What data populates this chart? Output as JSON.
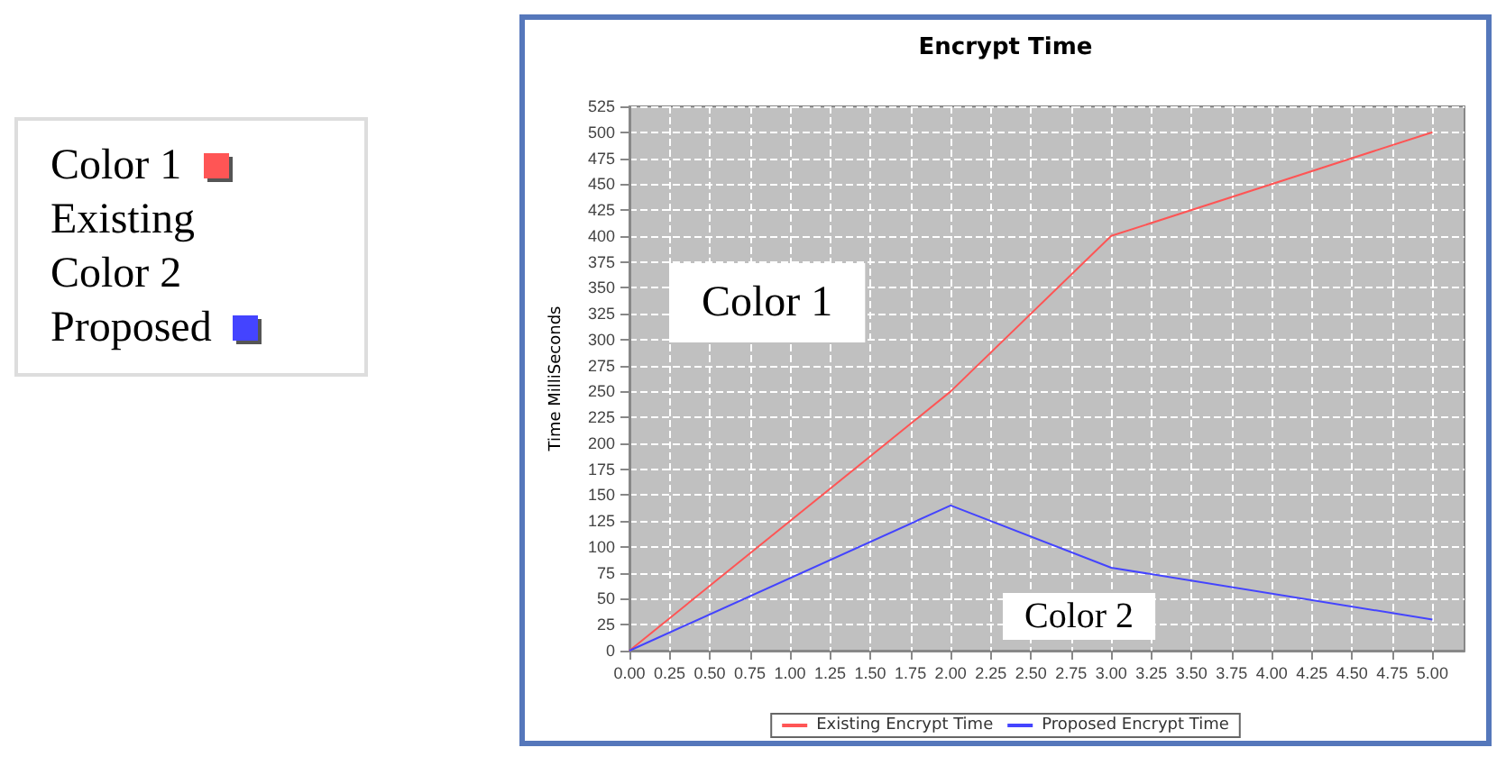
{
  "chart_data": {
    "type": "line",
    "title": "Encrypt Time",
    "ylabel": "Time MilliSeconds",
    "x": [
      0,
      2,
      3,
      5
    ],
    "series": [
      {
        "name": "Existing Encrypt Time",
        "color": "#ff5555",
        "values": [
          0,
          250,
          400,
          500
        ]
      },
      {
        "name": "Proposed Encrypt Time",
        "color": "#4444ff",
        "values": [
          0,
          140,
          80,
          30
        ]
      }
    ],
    "xlim": [
      0,
      5.2
    ],
    "xticks": [
      {
        "value": 0,
        "label": "0.00"
      },
      {
        "value": 0.25,
        "label": "0.25"
      },
      {
        "value": 0.5,
        "label": "0.50"
      },
      {
        "value": 0.75,
        "label": "0.75"
      },
      {
        "value": 1,
        "label": "1.00"
      },
      {
        "value": 1.25,
        "label": "1.25"
      },
      {
        "value": 1.5,
        "label": "1.50"
      },
      {
        "value": 1.75,
        "label": "1.75"
      },
      {
        "value": 2,
        "label": "2.00"
      },
      {
        "value": 2.25,
        "label": "2.25"
      },
      {
        "value": 2.5,
        "label": "2.50"
      },
      {
        "value": 2.75,
        "label": "2.75"
      },
      {
        "value": 3,
        "label": "3.00"
      },
      {
        "value": 3.25,
        "label": "3.25"
      },
      {
        "value": 3.5,
        "label": "3.50"
      },
      {
        "value": 3.75,
        "label": "3.75"
      },
      {
        "value": 4,
        "label": "4.00"
      },
      {
        "value": 4.25,
        "label": "4.25"
      },
      {
        "value": 4.5,
        "label": "4.50"
      },
      {
        "value": 4.75,
        "label": "4.75"
      },
      {
        "value": 5,
        "label": "5.00"
      }
    ],
    "ylim": [
      0,
      525
    ],
    "yticks": [
      0,
      25,
      50,
      75,
      100,
      125,
      150,
      175,
      200,
      225,
      250,
      275,
      300,
      325,
      350,
      375,
      400,
      425,
      450,
      475,
      500,
      525
    ],
    "grid": true,
    "legend": "bottom",
    "marker": "none",
    "line_style": "solid",
    "annotations": [
      "Color 1",
      "Color 2",
      "Color 1",
      "Existing",
      "Color 2",
      "Proposed"
    ]
  }
}
